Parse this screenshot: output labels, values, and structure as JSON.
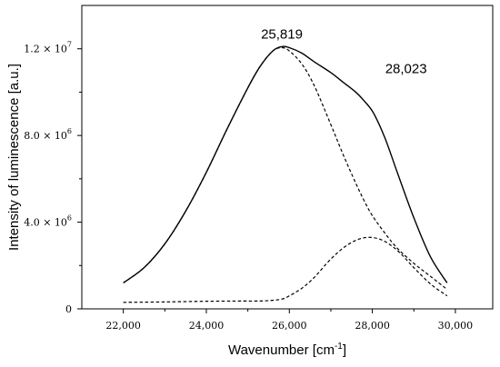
{
  "chart_data": {
    "type": "line",
    "xlabel": "Wavenumber [cm",
    "xlabel_sup": "-1",
    "xlabel_end": "]",
    "ylabel": "Intensity of luminescence [a.u.]",
    "xlim": [
      21000,
      30900
    ],
    "ylim": [
      0,
      14000000
    ],
    "x_ticks": [
      {
        "value": 22000,
        "label": "22,000"
      },
      {
        "value": 24000,
        "label": "24,000"
      },
      {
        "value": 26000,
        "label": "26,000"
      },
      {
        "value": 28000,
        "label": "28,000"
      },
      {
        "value": 30000,
        "label": "30,000"
      }
    ],
    "y_ticks": [
      {
        "value": 0,
        "base": "0",
        "exp": ""
      },
      {
        "value": 4000000,
        "base": "4.0 × 10",
        "exp": "6"
      },
      {
        "value": 8000000,
        "base": "8.0 × 10",
        "exp": "6"
      },
      {
        "value": 12000000,
        "base": "1.2 × 10",
        "exp": "7"
      }
    ],
    "annotations": [
      {
        "text": "25,819",
        "x": 25819,
        "y": 12100000
      },
      {
        "text": "28,023",
        "x": 28023,
        "y": 10300000
      }
    ],
    "series": [
      {
        "style": "solid",
        "x": [
          22000,
          22500,
          23000,
          23500,
          24000,
          24500,
          25000,
          25300,
          25600,
          25819,
          26000,
          26300,
          26600,
          27000,
          27300,
          27600,
          27800,
          28023,
          28300,
          28600,
          29000,
          29400,
          29800
        ],
        "y": [
          1200000,
          1900000,
          3000000,
          4500000,
          6300000,
          8300000,
          10200000,
          11200000,
          11900000,
          12100000,
          12050000,
          11800000,
          11400000,
          10900000,
          10450000,
          10000000,
          9600000,
          9050000,
          7900000,
          6300000,
          4200000,
          2400000,
          1200000
        ]
      },
      {
        "style": "dashed",
        "x": [
          22000,
          23000,
          24000,
          24800,
          25200,
          25500,
          25819,
          26000,
          26300,
          26600,
          27000,
          27400,
          27800,
          28200,
          28600,
          29000,
          29400,
          29800
        ],
        "y": [
          300000,
          320000,
          350000,
          360000,
          360000,
          380000,
          450000,
          600000,
          950000,
          1450000,
          2300000,
          2950000,
          3280000,
          3200000,
          2700000,
          1900000,
          1150000,
          600000
        ]
      },
      {
        "style": "dashed",
        "x": [
          22000,
          22500,
          23000,
          23500,
          24000,
          24500,
          25000,
          25300,
          25600,
          25819,
          26000,
          26300,
          26600,
          27000,
          27300,
          27600,
          27800,
          28000,
          28300,
          28600,
          29000,
          29400,
          29800
        ],
        "y": [
          1200000,
          1900000,
          3000000,
          4500000,
          6300000,
          8300000,
          10200000,
          11200000,
          11900000,
          12050000,
          11900000,
          11300000,
          10300000,
          8500000,
          7100000,
          5800000,
          5000000,
          4300000,
          3500000,
          2800000,
          2100000,
          1500000,
          900000
        ]
      }
    ]
  }
}
